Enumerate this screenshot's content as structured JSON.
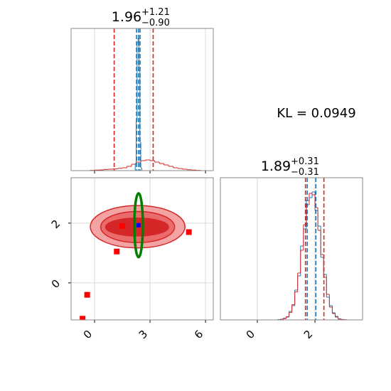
{
  "annotation": "KL = 0.0949",
  "chart_data": [
    {
      "type": "histogram",
      "title": "1.96",
      "title_sup": "+1.21",
      "title_sub": "−0.90",
      "xlim": [
        -1.27,
        6.42
      ],
      "ylim": [
        0,
        1
      ],
      "grid": true,
      "series": [
        {
          "color": "#d62728",
          "bins": [
            -1,
            -0.75,
            -0.5,
            -0.25,
            0,
            0.25,
            0.5,
            0.75,
            1,
            1.25,
            1.5,
            1.75,
            2,
            2.25,
            2.5,
            2.75,
            3,
            3.25,
            3.5,
            3.75,
            4,
            4.25,
            4.5,
            4.75,
            5,
            5.25,
            5.5,
            5.75,
            6
          ],
          "values": [
            0,
            0,
            0,
            0.002,
            0.004,
            0.005,
            0.008,
            0.01,
            0.013,
            0.016,
            0.02,
            0.03,
            0.045,
            0.06,
            0.07,
            0.075,
            0.07,
            0.06,
            0.05,
            0.04,
            0.03,
            0.02,
            0.015,
            0.01,
            0.006,
            0.004,
            0.002,
            0
          ]
        },
        {
          "color": "#1f77b4",
          "bins": [
            2.2,
            2.25,
            2.3,
            2.35,
            2.4,
            2.45,
            2.5,
            2.55
          ],
          "values": [
            0.05,
            0.35,
            0.9,
            0.93,
            0.7,
            0.2,
            0.02
          ]
        }
      ],
      "lines": [
        {
          "x": 1.06,
          "color": "#d62728"
        },
        {
          "x": 3.17,
          "color": "#d62728"
        },
        {
          "x": 2.27,
          "color": "#1f77b4"
        },
        {
          "x": 2.38,
          "color": "#1f77b4"
        },
        {
          "x": 2.46,
          "color": "#1f77b4"
        }
      ]
    },
    {
      "type": "scatter",
      "xlim": [
        -1.27,
        6.42
      ],
      "ylim": [
        -1.24,
        3.52
      ],
      "xticks": [
        0,
        3,
        6
      ],
      "yticks": [
        0,
        2
      ],
      "grid": true,
      "contours": [
        {
          "cx": 2.33,
          "cy": 1.88,
          "rx": 2.56,
          "ry": 0.71,
          "color": "#f4a3a3"
        },
        {
          "cx": 2.33,
          "cy": 1.87,
          "rx": 2.0,
          "ry": 0.52,
          "color": "#ea6b6b"
        },
        {
          "cx": 2.3,
          "cy": 1.87,
          "rx": 1.7,
          "ry": 0.3,
          "color": "#d62728"
        }
      ],
      "points": {
        "color": "#ff0000",
        "x": [
          1.5,
          1.2,
          5.1,
          -0.4,
          -0.65
        ],
        "y": [
          1.9,
          1.05,
          1.7,
          -0.4,
          -1.2
        ]
      },
      "marker": {
        "color": "#0000ff",
        "x": 2.38,
        "y": 1.93
      },
      "ellipse": {
        "cx": 2.38,
        "cy": 1.93,
        "rx": 0.23,
        "ry": 1.07,
        "color": "#008000"
      }
    },
    {
      "type": "histogram",
      "title": "1.89",
      "title_sup": "+0.31",
      "title_sub": "−0.31",
      "xlim": [
        -1.28,
        3.65
      ],
      "ylim": [
        0,
        1
      ],
      "xticks": [
        0,
        2
      ],
      "grid": true,
      "series": [
        {
          "color": "#1f77b4",
          "bins": [
            0.5,
            0.6,
            0.7,
            0.8,
            0.9,
            1.0,
            1.1,
            1.2,
            1.3,
            1.4,
            1.5,
            1.6,
            1.7,
            1.8,
            1.9,
            2.0,
            2.1,
            2.2,
            2.3,
            2.4,
            2.5,
            2.6,
            2.7,
            2.8,
            2.9,
            3.0,
            3.1,
            3.2,
            3.3,
            3.4,
            3.5
          ],
          "values": [
            0,
            0,
            0.002,
            0.005,
            0.012,
            0.02,
            0.06,
            0.1,
            0.21,
            0.31,
            0.52,
            0.64,
            0.84,
            0.86,
            0.9,
            0.77,
            0.66,
            0.44,
            0.32,
            0.16,
            0.1,
            0.05,
            0.025,
            0.006,
            0.003,
            0.001,
            0,
            0,
            0,
            0
          ]
        },
        {
          "color": "#d62728",
          "bins": [
            0.5,
            0.6,
            0.7,
            0.8,
            0.9,
            1.0,
            1.1,
            1.2,
            1.3,
            1.4,
            1.5,
            1.6,
            1.7,
            1.8,
            1.9,
            2.0,
            2.1,
            2.2,
            2.3,
            2.4,
            2.5,
            2.6,
            2.7,
            2.8,
            2.9,
            3.0,
            3.1,
            3.2,
            3.3,
            3.4,
            3.5
          ],
          "values": [
            0,
            0,
            0.001,
            0.003,
            0.009,
            0.023,
            0.052,
            0.107,
            0.197,
            0.33,
            0.49,
            0.67,
            0.81,
            0.89,
            0.88,
            0.79,
            0.63,
            0.46,
            0.3,
            0.18,
            0.09,
            0.045,
            0.02,
            0.008,
            0.003,
            0.001,
            0,
            0,
            0,
            0
          ]
        }
      ],
      "lines": [
        {
          "x": 1.67,
          "color": "#d62728"
        },
        {
          "x": 2.31,
          "color": "#d62728"
        },
        {
          "x": 1.73,
          "color": "#1f77b4"
        },
        {
          "x": 2.03,
          "color": "#1f77b4"
        }
      ]
    }
  ]
}
